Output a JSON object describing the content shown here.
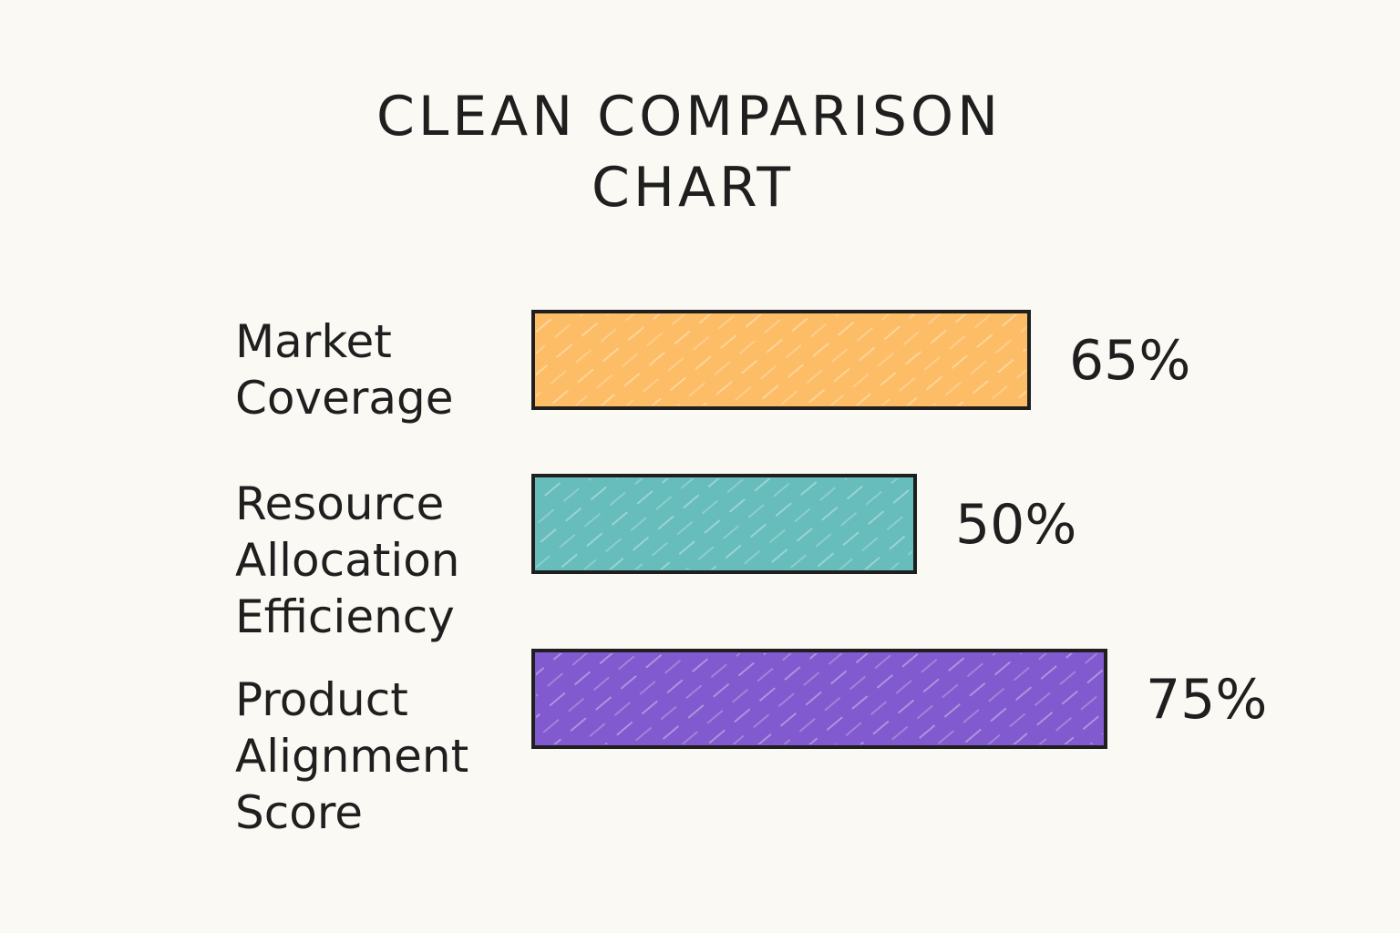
{
  "chart_data": {
    "type": "bar",
    "orientation": "horizontal",
    "title": "CLEAN COMPARISON CHART",
    "title_lines": [
      "CLEAN COMPARISON",
      "CHART"
    ],
    "categories": [
      "Market Coverage",
      "Resource Allocation Efficiency",
      "Product Alignment Score"
    ],
    "category_lines": [
      [
        "Market",
        "Coverage"
      ],
      [
        "Resource",
        "Allocation",
        "Efficiency"
      ],
      [
        "Product",
        "Alignment",
        "Score"
      ]
    ],
    "values": [
      65,
      50,
      75
    ],
    "value_labels": [
      "65%",
      "50%",
      "75%"
    ],
    "unit": "%",
    "xlim": [
      0,
      100
    ],
    "grid": false,
    "legend": "none",
    "colors": [
      "#fdbd66",
      "#66bdbb",
      "#805ace"
    ],
    "outline_color": "#1f1f1f",
    "background_color": "#fbf9f4"
  }
}
